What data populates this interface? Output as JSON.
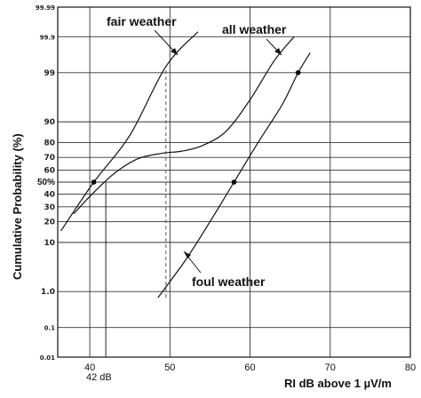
{
  "chart_data": {
    "type": "line",
    "title": "",
    "xlabel": "RI dB above 1 µV/m",
    "ylabel": "Cumulative Probability (%)",
    "xlim": [
      36,
      80
    ],
    "y_scale": "normal-probability",
    "ylim": [
      0.01,
      99.99
    ],
    "x_ticks": [
      "40",
      "50",
      "60",
      "70",
      "80"
    ],
    "y_ticks": [
      "0.01",
      "0.1",
      "1.0",
      "10",
      "20",
      "30",
      "40",
      "50%",
      "60",
      "70",
      "80",
      "90",
      "99",
      "99.9",
      "99.99"
    ],
    "grid": true,
    "series": [
      {
        "name": "fair weather",
        "x": [
          36.4,
          40.5,
          45,
          49.5,
          53.5
        ],
        "y": [
          15,
          50,
          84,
          99.3,
          99.93
        ]
      },
      {
        "name": "all weather",
        "x": [
          38,
          40,
          43,
          46,
          49,
          51.5,
          54,
          57,
          60,
          63,
          65.5
        ],
        "y": [
          25,
          38,
          57,
          69,
          73,
          74.5,
          78,
          86,
          96,
          99.5,
          99.9
        ]
      },
      {
        "name": "foul weather",
        "x": [
          48.5,
          52,
          55,
          58,
          61,
          64,
          66,
          67.5
        ],
        "y": [
          0.7,
          5,
          20,
          50,
          80,
          95,
          99,
          99.7
        ]
      }
    ],
    "markers": [
      {
        "x": 40.5,
        "y": 50
      },
      {
        "x": 58,
        "y": 50
      },
      {
        "x": 66,
        "y": 99
      }
    ],
    "reference_lines": [
      {
        "orientation": "vertical",
        "x": 42,
        "y_from": 0.01,
        "y_to": 50
      },
      {
        "orientation": "vertical",
        "x": 49.5,
        "y_from": 0.7,
        "y_to": 99.3,
        "style": "dashed"
      }
    ],
    "annotations": {
      "fair": "fair weather",
      "all": "all weather",
      "foul": "foul weather",
      "db42": "42 dB"
    }
  }
}
